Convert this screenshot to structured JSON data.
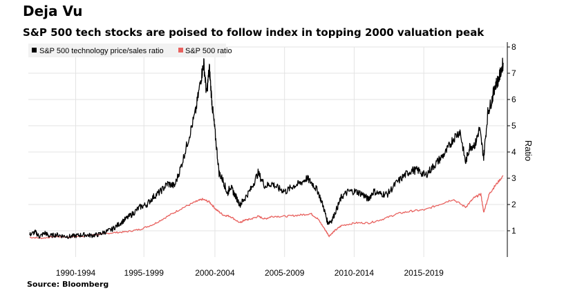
{
  "header": {
    "title": "Deja Vu",
    "subtitle": "S&P 500 tech stocks are poised to follow index in topping 2000 valuation peak"
  },
  "source": "Source: Bloomberg",
  "colors": {
    "tech": "#000000",
    "sp500": "#e8625f",
    "grid": "#e3e3e3",
    "legend_bg": "#f2f2f2"
  },
  "chart_data": {
    "type": "line",
    "ylabel": "Ratio",
    "ylim": [
      0,
      8
    ],
    "xlim": [
      1987.5,
      2021.7
    ],
    "y_ticks": [
      1,
      2,
      3,
      4,
      5,
      6,
      7,
      8
    ],
    "x_tick_labels": [
      {
        "label": "1990-1994",
        "year": 1990.9
      },
      {
        "label": "1995-1999",
        "year": 1995.8
      },
      {
        "label": "2000-2004",
        "year": 2000.9
      },
      {
        "label": "2005-2009",
        "year": 2005.9
      },
      {
        "label": "2010-2014",
        "year": 2010.9
      },
      {
        "label": "2015-2019",
        "year": 2015.9
      }
    ],
    "legend_position": "top-left",
    "grid": true,
    "series": [
      {
        "name": "S&P 500 technology price/sales ratio",
        "points": [
          [
            1987.6,
            0.85
          ],
          [
            1988.0,
            0.95
          ],
          [
            1988.3,
            0.78
          ],
          [
            1988.7,
            0.92
          ],
          [
            1989.0,
            0.8
          ],
          [
            1989.5,
            0.85
          ],
          [
            1990.0,
            0.8
          ],
          [
            1990.5,
            0.78
          ],
          [
            1991.0,
            0.82
          ],
          [
            1991.5,
            0.85
          ],
          [
            1992.0,
            0.82
          ],
          [
            1992.5,
            0.85
          ],
          [
            1993.0,
            0.95
          ],
          [
            1993.5,
            1.05
          ],
          [
            1994.0,
            1.25
          ],
          [
            1994.5,
            1.45
          ],
          [
            1995.0,
            1.65
          ],
          [
            1995.5,
            1.9
          ],
          [
            1996.0,
            2.0
          ],
          [
            1996.5,
            2.3
          ],
          [
            1997.0,
            2.5
          ],
          [
            1997.5,
            2.8
          ],
          [
            1998.0,
            2.7
          ],
          [
            1998.5,
            3.5
          ],
          [
            1999.0,
            4.5
          ],
          [
            1999.5,
            5.5
          ],
          [
            1999.9,
            6.8
          ],
          [
            2000.1,
            7.4
          ],
          [
            2000.3,
            6.2
          ],
          [
            2000.5,
            7.2
          ],
          [
            2000.7,
            5.8
          ],
          [
            2000.9,
            4.8
          ],
          [
            2001.2,
            3.2
          ],
          [
            2001.5,
            2.9
          ],
          [
            2001.8,
            2.4
          ],
          [
            2002.0,
            2.7
          ],
          [
            2002.3,
            2.4
          ],
          [
            2002.7,
            2.0
          ],
          [
            2003.0,
            2.2
          ],
          [
            2003.5,
            2.6
          ],
          [
            2004.0,
            3.2
          ],
          [
            2004.5,
            2.7
          ],
          [
            2005.0,
            2.8
          ],
          [
            2005.5,
            2.6
          ],
          [
            2006.0,
            2.5
          ],
          [
            2006.5,
            2.7
          ],
          [
            2007.0,
            2.8
          ],
          [
            2007.5,
            3.0
          ],
          [
            2007.9,
            2.8
          ],
          [
            2008.3,
            2.5
          ],
          [
            2008.7,
            1.9
          ],
          [
            2009.0,
            1.3
          ],
          [
            2009.3,
            1.4
          ],
          [
            2009.7,
            1.9
          ],
          [
            2010.0,
            2.3
          ],
          [
            2010.5,
            2.5
          ],
          [
            2011.0,
            2.5
          ],
          [
            2011.5,
            2.4
          ],
          [
            2011.9,
            2.2
          ],
          [
            2012.3,
            2.5
          ],
          [
            2012.8,
            2.4
          ],
          [
            2013.3,
            2.4
          ],
          [
            2013.9,
            2.8
          ],
          [
            2014.5,
            3.1
          ],
          [
            2015.0,
            3.3
          ],
          [
            2015.5,
            3.3
          ],
          [
            2016.0,
            3.1
          ],
          [
            2016.5,
            3.4
          ],
          [
            2017.0,
            3.7
          ],
          [
            2017.5,
            4.0
          ],
          [
            2018.0,
            4.5
          ],
          [
            2018.5,
            4.8
          ],
          [
            2018.9,
            3.6
          ],
          [
            2019.2,
            4.2
          ],
          [
            2019.6,
            4.3
          ],
          [
            2019.9,
            4.9
          ],
          [
            2020.2,
            3.8
          ],
          [
            2020.5,
            5.5
          ],
          [
            2020.8,
            6.0
          ],
          [
            2021.0,
            6.5
          ],
          [
            2021.3,
            6.8
          ],
          [
            2021.6,
            7.4
          ]
        ]
      },
      {
        "name": "S&P 500 ratio",
        "points": [
          [
            1987.6,
            0.75
          ],
          [
            1988.5,
            0.72
          ],
          [
            1989.5,
            0.78
          ],
          [
            1990.5,
            0.76
          ],
          [
            1991.5,
            0.8
          ],
          [
            1992.5,
            0.86
          ],
          [
            1993.5,
            0.92
          ],
          [
            1994.5,
            0.96
          ],
          [
            1995.5,
            1.05
          ],
          [
            1996.5,
            1.25
          ],
          [
            1997.5,
            1.55
          ],
          [
            1998.5,
            1.85
          ],
          [
            1999.5,
            2.1
          ],
          [
            2000.0,
            2.2
          ],
          [
            2000.5,
            2.1
          ],
          [
            2001.0,
            1.8
          ],
          [
            2001.5,
            1.6
          ],
          [
            2002.0,
            1.55
          ],
          [
            2002.7,
            1.3
          ],
          [
            2003.0,
            1.4
          ],
          [
            2003.5,
            1.45
          ],
          [
            2004.0,
            1.55
          ],
          [
            2004.5,
            1.45
          ],
          [
            2005.0,
            1.55
          ],
          [
            2006.0,
            1.55
          ],
          [
            2007.0,
            1.6
          ],
          [
            2007.8,
            1.65
          ],
          [
            2008.3,
            1.45
          ],
          [
            2008.8,
            1.05
          ],
          [
            2009.1,
            0.8
          ],
          [
            2009.5,
            1.0
          ],
          [
            2010.0,
            1.2
          ],
          [
            2011.0,
            1.3
          ],
          [
            2012.0,
            1.3
          ],
          [
            2013.0,
            1.45
          ],
          [
            2014.0,
            1.65
          ],
          [
            2015.0,
            1.75
          ],
          [
            2016.0,
            1.8
          ],
          [
            2017.0,
            2.0
          ],
          [
            2018.0,
            2.2
          ],
          [
            2018.9,
            1.9
          ],
          [
            2019.5,
            2.25
          ],
          [
            2020.0,
            2.4
          ],
          [
            2020.2,
            1.7
          ],
          [
            2020.6,
            2.4
          ],
          [
            2021.0,
            2.7
          ],
          [
            2021.6,
            3.1
          ]
        ]
      }
    ]
  }
}
